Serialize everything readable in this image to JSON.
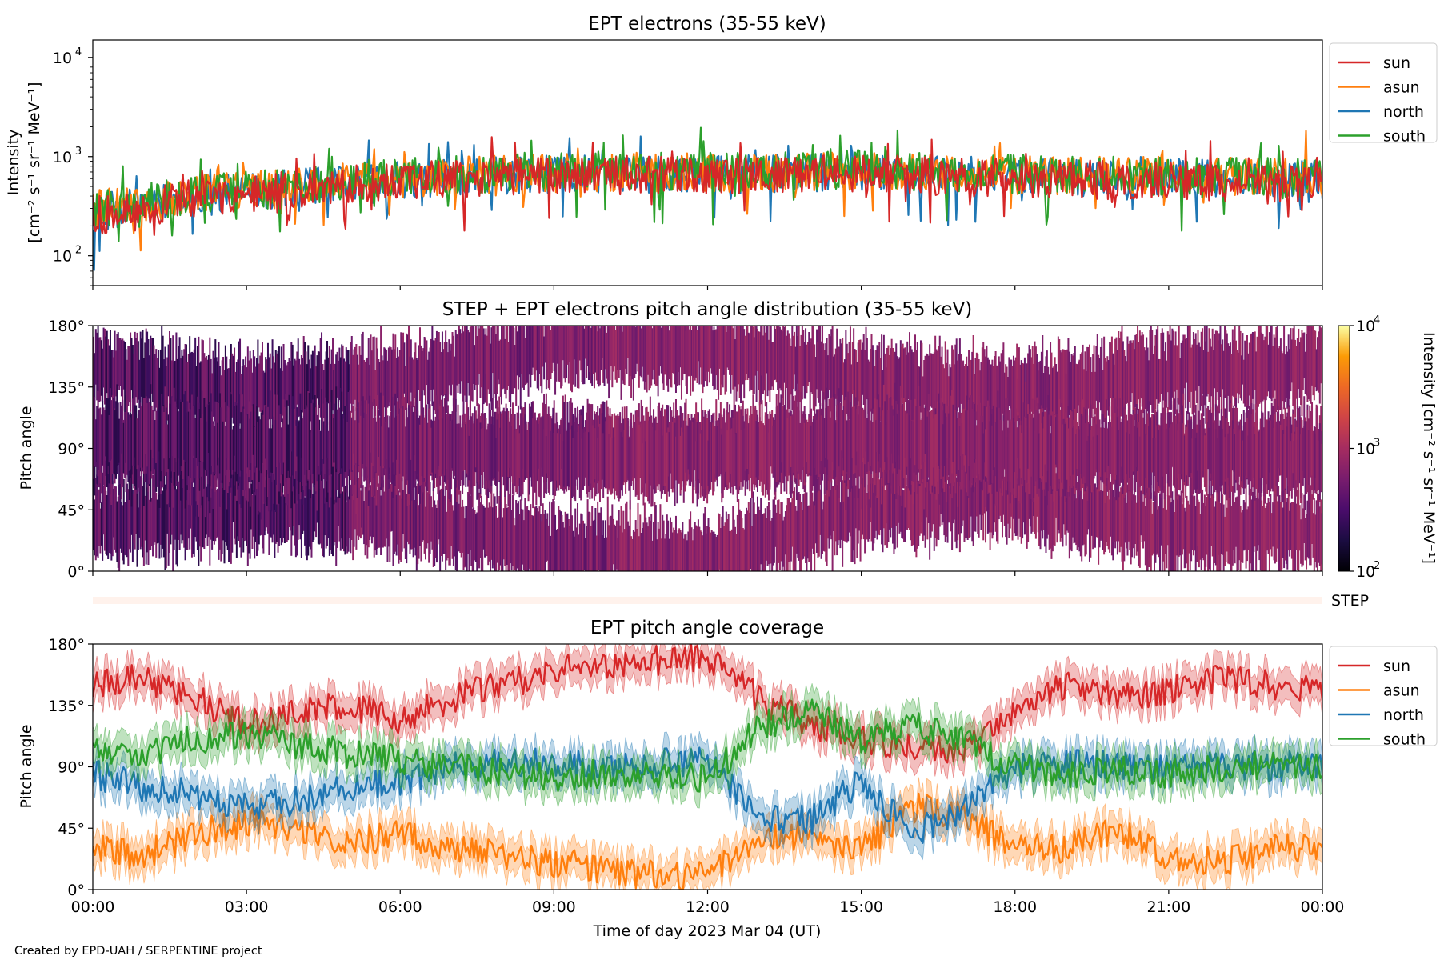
{
  "figure": {
    "credit": "Created by EPD-UAH / SERPENTINE project",
    "xlabel": "Time of day 2023 Mar 04 (UT)",
    "xticklabels": [
      "00:00",
      "03:00",
      "06:00",
      "09:00",
      "12:00",
      "15:00",
      "18:00",
      "21:00",
      "00:00"
    ]
  },
  "colors": {
    "sun": "#d62728",
    "asun": "#ff7f0e",
    "north": "#1f77b4",
    "south": "#2ca02c"
  },
  "chart_data": [
    {
      "type": "line",
      "title": "EPT electrons (35-55 keV)",
      "ylabel": [
        "Intensity",
        "[cm⁻² s⁻¹ sr⁻¹ MeV⁻¹]"
      ],
      "yscale": "log",
      "ylim": [
        50,
        15000
      ],
      "yticks": [
        {
          "value": 100,
          "base": "10",
          "exp": "2"
        },
        {
          "value": 1000,
          "base": "10",
          "exp": "3"
        },
        {
          "value": 10000,
          "base": "10",
          "exp": "4"
        }
      ],
      "xlim_hours": [
        0,
        24
      ],
      "legend": "outside-right",
      "series": [
        {
          "name": "sun",
          "hours": [
            0,
            1,
            2,
            3,
            4,
            5,
            6,
            7,
            8,
            9,
            10,
            11,
            12,
            13,
            14,
            15,
            16,
            17,
            18,
            19,
            20,
            21,
            22,
            23,
            24
          ],
          "values": [
            250,
            300,
            380,
            420,
            470,
            520,
            560,
            590,
            620,
            640,
            650,
            650,
            650,
            650,
            660,
            700,
            640,
            620,
            610,
            590,
            580,
            560,
            550,
            540,
            520
          ]
        },
        {
          "name": "asun",
          "hours": [
            0,
            1,
            2,
            3,
            4,
            5,
            6,
            7,
            8,
            9,
            10,
            11,
            12,
            13,
            14,
            15,
            16,
            17,
            18,
            19,
            20,
            21,
            22,
            23,
            24
          ],
          "values": [
            290,
            340,
            420,
            460,
            510,
            560,
            600,
            630,
            660,
            680,
            690,
            690,
            690,
            690,
            700,
            730,
            680,
            660,
            650,
            640,
            640,
            640,
            640,
            630,
            620
          ]
        },
        {
          "name": "north",
          "hours": [
            0,
            1,
            2,
            3,
            4,
            5,
            6,
            7,
            8,
            9,
            10,
            11,
            12,
            13,
            14,
            15,
            16,
            17,
            18,
            19,
            20,
            21,
            22,
            23,
            24
          ],
          "values": [
            260,
            320,
            400,
            440,
            490,
            540,
            580,
            610,
            640,
            660,
            670,
            670,
            670,
            670,
            680,
            710,
            660,
            640,
            630,
            620,
            610,
            600,
            600,
            590,
            580
          ]
        },
        {
          "name": "south",
          "hours": [
            0,
            1,
            2,
            3,
            4,
            5,
            6,
            7,
            8,
            9,
            10,
            11,
            12,
            13,
            14,
            15,
            16,
            17,
            18,
            19,
            20,
            21,
            22,
            23,
            24
          ],
          "values": [
            280,
            340,
            420,
            470,
            520,
            570,
            610,
            650,
            690,
            710,
            720,
            710,
            700,
            700,
            710,
            760,
            700,
            680,
            670,
            660,
            650,
            640,
            630,
            620,
            610
          ]
        }
      ]
    },
    {
      "type": "heatmap",
      "title": "STEP + EPT electrons pitch angle distribution (35-55 keV)",
      "ylabel": "Pitch angle",
      "ylim": [
        0,
        180
      ],
      "yticklabels": [
        "0°",
        "45°",
        "90°",
        "135°",
        "180°"
      ],
      "xlim_hours": [
        0,
        24
      ],
      "colorbar": {
        "label": "Intensity [cm⁻² s⁻¹ sr⁻¹ MeV⁻¹]",
        "scale": "log",
        "range": [
          100,
          10000
        ],
        "ticks": [
          {
            "value": 100,
            "base": "10",
            "exp": "2"
          },
          {
            "value": 1000,
            "base": "10",
            "exp": "3"
          },
          {
            "value": 10000,
            "base": "10",
            "exp": "4"
          }
        ]
      },
      "pitch_angle_bands": {
        "hours": [
          0,
          3,
          6,
          9,
          12,
          15,
          18,
          21,
          24
        ],
        "sun": [
          150,
          130,
          140,
          165,
          165,
          140,
          130,
          145,
          150
        ],
        "asun": [
          35,
          45,
          40,
          15,
          10,
          45,
          55,
          30,
          30
        ],
        "north": [
          90,
          75,
          85,
          90,
          90,
          85,
          85,
          90,
          90
        ],
        "south": [
          100,
          95,
          95,
          85,
          85,
          100,
          90,
          85,
          85
        ],
        "half_width_deg": 22
      }
    },
    {
      "type": "line",
      "label": "STEP",
      "note": "empty strip"
    },
    {
      "type": "line",
      "title": "EPT pitch angle coverage",
      "ylabel": "Pitch angle",
      "ylim": [
        0,
        180
      ],
      "yticklabels": [
        "0°",
        "45°",
        "90°",
        "135°",
        "180°"
      ],
      "xlim_hours": [
        0,
        24
      ],
      "legend": "outside-right",
      "band_half_width_deg": 12,
      "series": [
        {
          "name": "sun",
          "hours": [
            0,
            1,
            2,
            3,
            4,
            5,
            6,
            7,
            8,
            9,
            10,
            11,
            12,
            13,
            14,
            15,
            16,
            17,
            18,
            19,
            20,
            21,
            22,
            23,
            24
          ],
          "values": [
            150,
            155,
            140,
            120,
            130,
            135,
            125,
            140,
            150,
            160,
            165,
            168,
            170,
            140,
            120,
            110,
            105,
            100,
            130,
            150,
            140,
            145,
            155,
            150,
            148
          ]
        },
        {
          "name": "asun",
          "hours": [
            0,
            1,
            2,
            3,
            4,
            5,
            6,
            7,
            8,
            9,
            10,
            11,
            12,
            13,
            14,
            15,
            16,
            17,
            18,
            19,
            20,
            21,
            22,
            23,
            24
          ],
          "values": [
            30,
            25,
            40,
            50,
            45,
            35,
            40,
            30,
            25,
            20,
            15,
            10,
            10,
            40,
            40,
            30,
            60,
            55,
            30,
            30,
            45,
            25,
            20,
            30,
            30
          ]
        },
        {
          "name": "north",
          "hours": [
            0,
            1,
            2,
            3,
            4,
            5,
            6,
            7,
            8,
            9,
            10,
            11,
            12,
            13,
            14,
            15,
            16,
            17,
            18,
            19,
            20,
            21,
            22,
            23,
            24
          ],
          "values": [
            85,
            75,
            70,
            60,
            65,
            75,
            80,
            90,
            95,
            92,
            90,
            92,
            95,
            55,
            50,
            80,
            40,
            60,
            88,
            92,
            90,
            90,
            92,
            90,
            92
          ]
        },
        {
          "name": "south",
          "hours": [
            0,
            1,
            2,
            3,
            4,
            5,
            6,
            7,
            8,
            9,
            10,
            11,
            12,
            13,
            14,
            15,
            16,
            17,
            18,
            19,
            20,
            21,
            22,
            23,
            24
          ],
          "values": [
            105,
            100,
            110,
            115,
            105,
            100,
            95,
            90,
            85,
            82,
            85,
            85,
            80,
            120,
            130,
            110,
            120,
            110,
            90,
            85,
            88,
            85,
            88,
            92,
            88
          ]
        }
      ]
    }
  ]
}
